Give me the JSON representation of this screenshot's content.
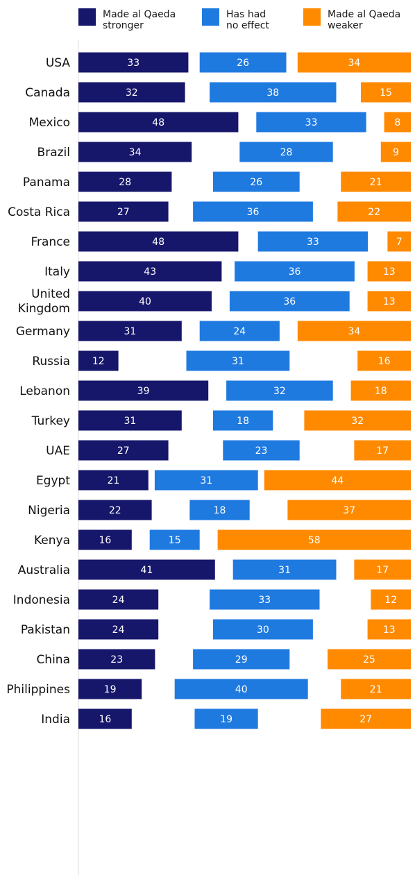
{
  "chart_data": {
    "type": "bar",
    "orientation": "horizontal",
    "series": [
      {
        "name": "Made al Qaeda stronger",
        "legend_lines": [
          "Made al Qaeda",
          "stronger"
        ],
        "color": "#16166b"
      },
      {
        "name": "Has had no effect",
        "legend_lines": [
          "Has had",
          "no effect"
        ],
        "color": "#1f7ae0"
      },
      {
        "name": "Made al Qaeda weaker",
        "legend_lines": [
          "Made al Qaeda",
          "weaker"
        ],
        "color": "#ff8a00"
      }
    ],
    "groups": [
      {
        "countries": [
          {
            "name": [
              "USA"
            ],
            "values": [
              33,
              26,
              34
            ]
          },
          {
            "name": [
              "Canada"
            ],
            "values": [
              32,
              38,
              15
            ]
          }
        ]
      },
      {
        "countries": [
          {
            "name": [
              "Mexico"
            ],
            "values": [
              48,
              33,
              8
            ]
          },
          {
            "name": [
              "Brazil"
            ],
            "values": [
              34,
              28,
              9
            ]
          },
          {
            "name": [
              "Panama"
            ],
            "values": [
              28,
              26,
              21
            ]
          },
          {
            "name": [
              "Costa Rica"
            ],
            "values": [
              27,
              36,
              22
            ]
          }
        ]
      },
      {
        "countries": [
          {
            "name": [
              "France"
            ],
            "values": [
              48,
              33,
              7
            ]
          },
          {
            "name": [
              "Italy"
            ],
            "values": [
              43,
              36,
              13
            ]
          },
          {
            "name": [
              "United",
              "Kingdom"
            ],
            "values": [
              40,
              36,
              13
            ]
          },
          {
            "name": [
              "Germany"
            ],
            "values": [
              31,
              24,
              34
            ]
          },
          {
            "name": [
              "Russia"
            ],
            "values": [
              12,
              31,
              16
            ]
          }
        ]
      },
      {
        "countries": [
          {
            "name": [
              "Lebanon"
            ],
            "values": [
              39,
              32,
              18
            ]
          },
          {
            "name": [
              "Turkey"
            ],
            "values": [
              31,
              18,
              32
            ]
          },
          {
            "name": [
              "UAE"
            ],
            "values": [
              27,
              23,
              17
            ]
          },
          {
            "name": [
              "Egypt"
            ],
            "values": [
              21,
              31,
              44
            ]
          }
        ]
      },
      {
        "countries": [
          {
            "name": [
              "Nigeria"
            ],
            "values": [
              22,
              18,
              37
            ]
          },
          {
            "name": [
              "Kenya"
            ],
            "values": [
              16,
              15,
              58
            ]
          }
        ]
      },
      {
        "countries": [
          {
            "name": [
              "Australia"
            ],
            "values": [
              41,
              31,
              17
            ]
          },
          {
            "name": [
              "Indonesia"
            ],
            "values": [
              24,
              33,
              12
            ]
          },
          {
            "name": [
              "Pakistan"
            ],
            "values": [
              24,
              30,
              13
            ]
          },
          {
            "name": [
              "China"
            ],
            "values": [
              23,
              29,
              25
            ]
          },
          {
            "name": [
              "Philippines"
            ],
            "values": [
              19,
              40,
              21
            ]
          },
          {
            "name": [
              "India"
            ],
            "values": [
              16,
              19,
              27
            ]
          }
        ]
      }
    ]
  }
}
